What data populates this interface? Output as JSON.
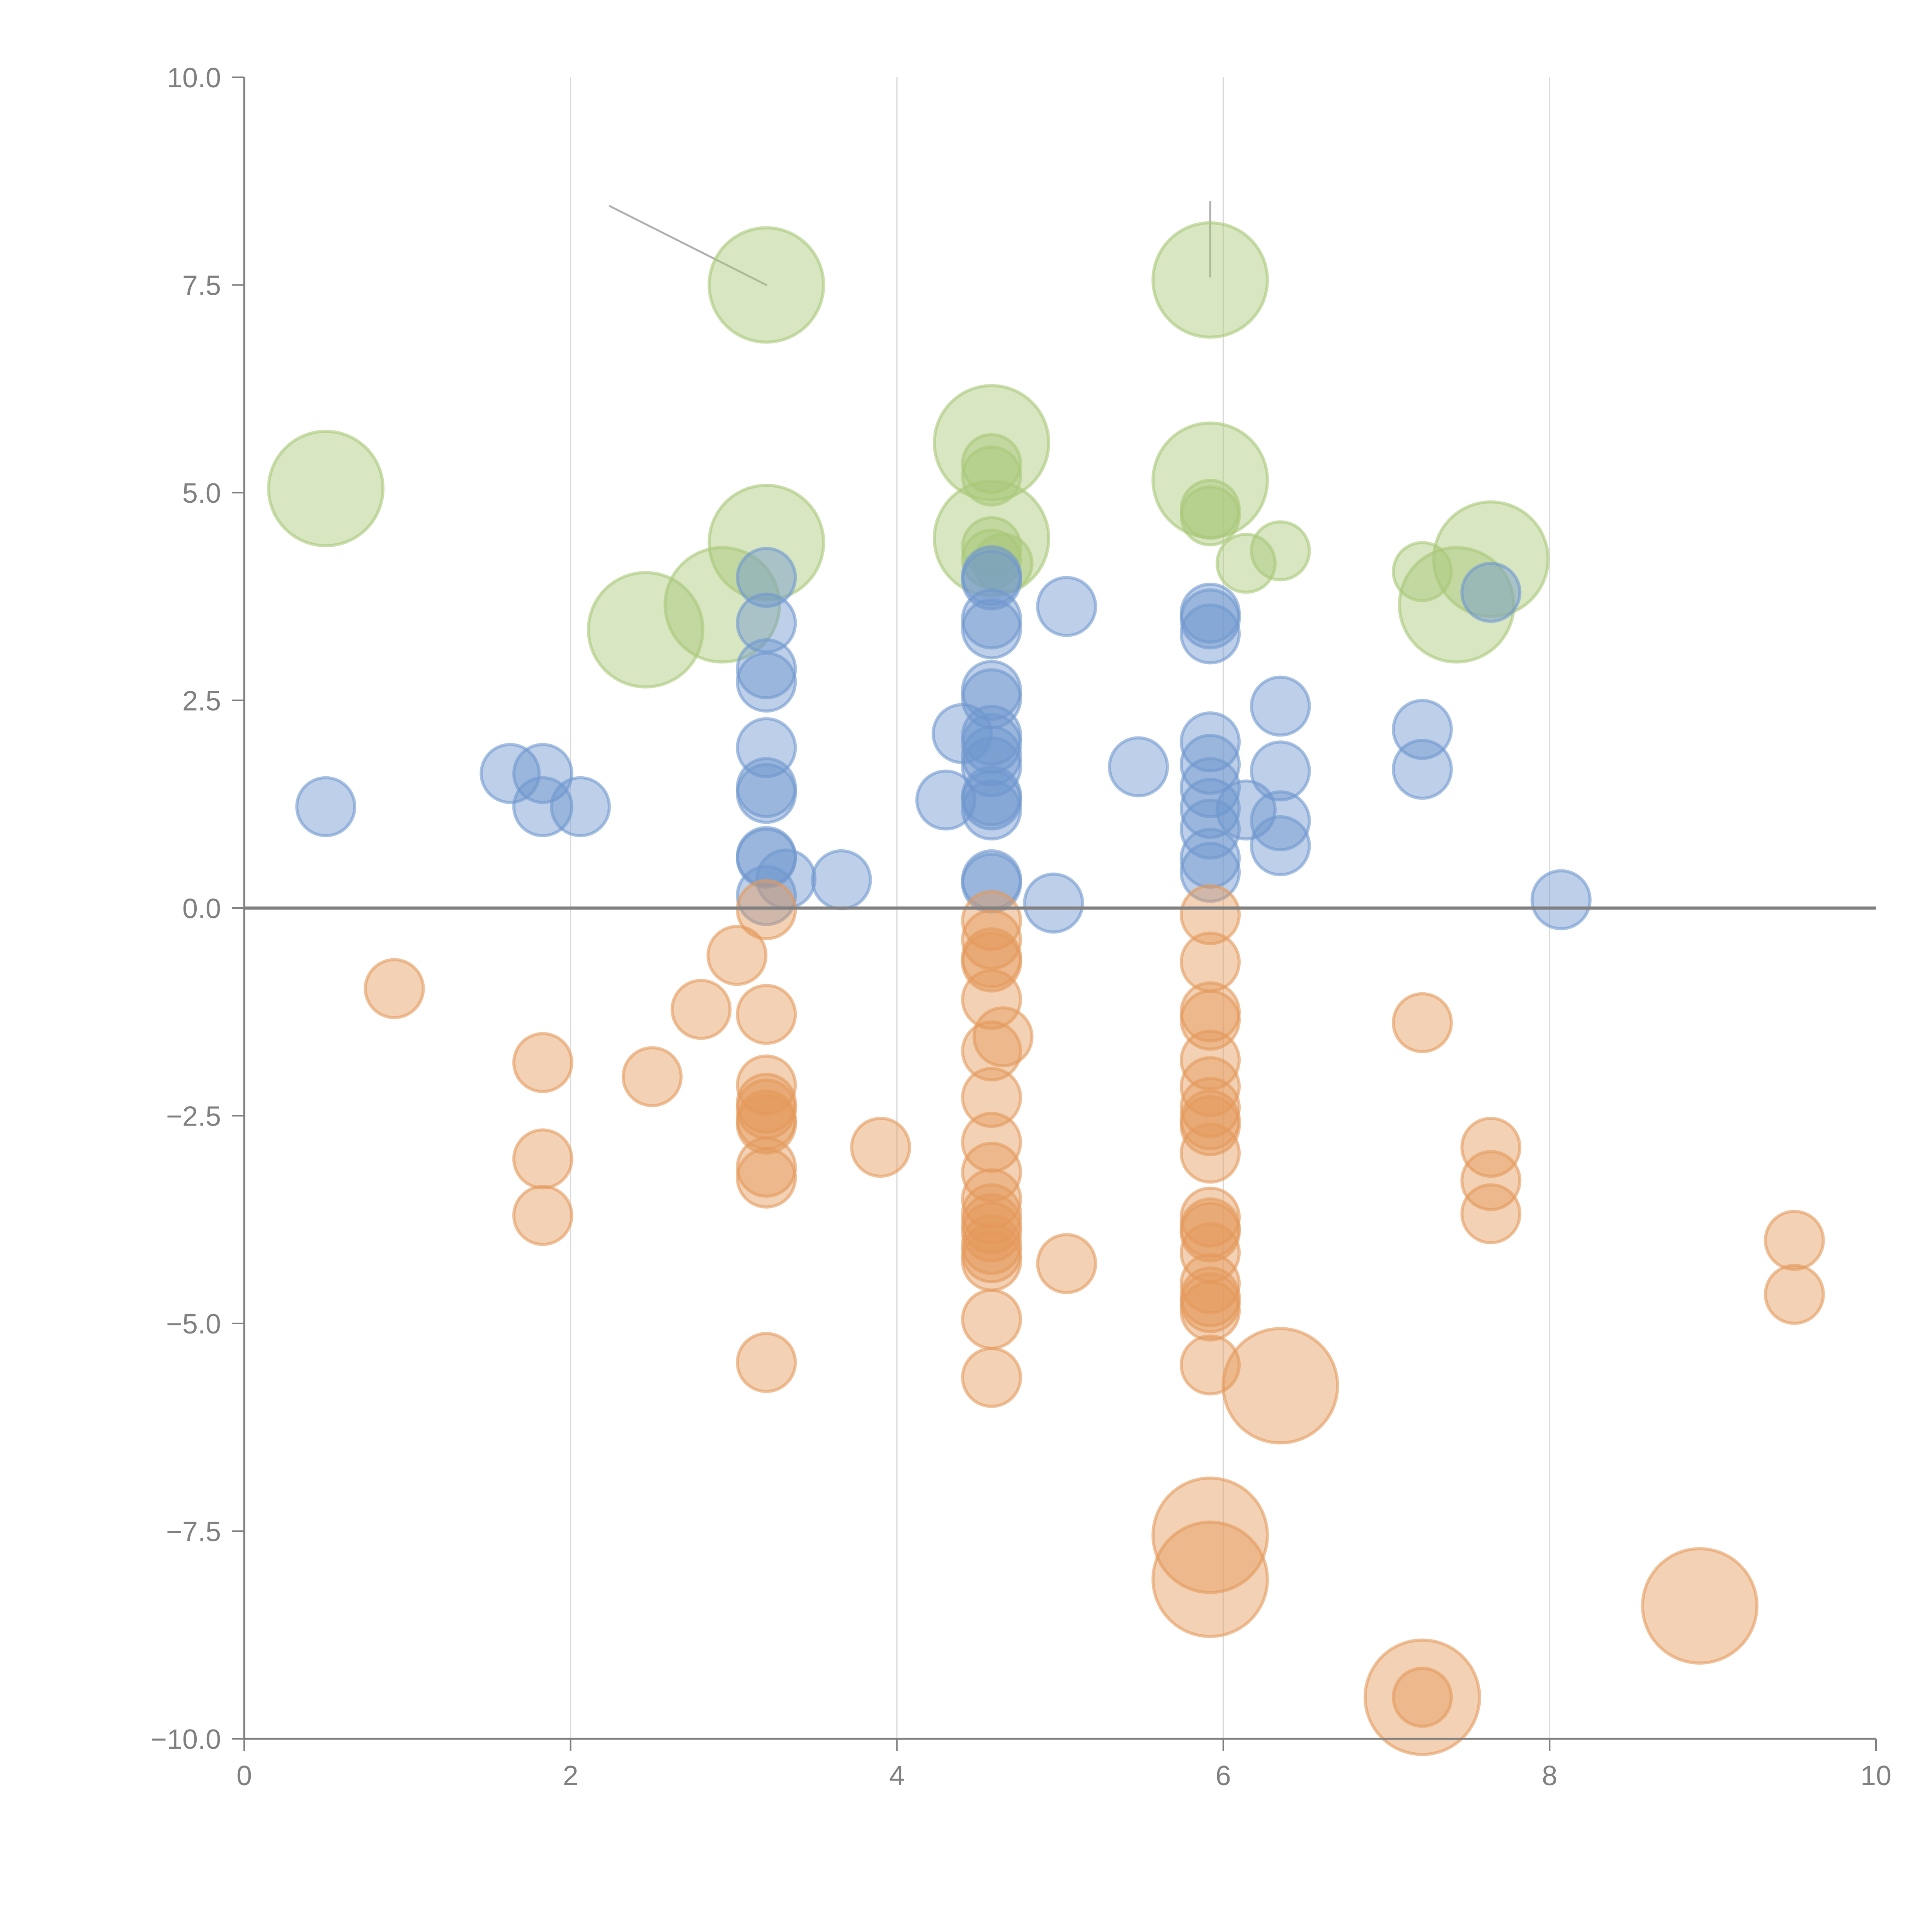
{
  "chart_data": {
    "type": "scatter",
    "title": "",
    "xlabel": "",
    "ylabel": "",
    "xlim": [
      0,
      10
    ],
    "ylim": [
      -10,
      10
    ],
    "grid": "vertical",
    "x_ticks": [
      "0",
      "2",
      "4",
      "6",
      "8",
      "10"
    ],
    "x_tick_values": [
      0,
      2,
      4,
      6,
      8,
      10
    ],
    "y_ticks": [
      "10.0",
      "7.5",
      "5.0",
      "2.5",
      "0.0",
      "−2.5",
      "−5.0",
      "−7.5",
      "−10.0"
    ],
    "y_tick_values": [
      10,
      7.5,
      5,
      2.5,
      0,
      -2.5,
      -5,
      -7.5,
      -10
    ],
    "zero_line": 0,
    "colors": {
      "blue": "#6f97cf",
      "orange": "#e49a5c",
      "green": "#a8c878",
      "axis": "#808080",
      "grid": "#d9d9d9",
      "leader": "#b0b0b0"
    },
    "series": [
      {
        "name": "green",
        "color": "#a8c878",
        "points": [
          [
            3.2,
            7.5,
            3
          ],
          [
            5.92,
            7.56,
            3
          ],
          [
            0.5,
            5.05,
            3
          ],
          [
            4.58,
            5.6,
            3
          ],
          [
            4.58,
            5.35,
            1
          ],
          [
            4.58,
            5.2,
            1
          ],
          [
            5.92,
            5.15,
            3
          ],
          [
            5.92,
            4.8,
            1
          ],
          [
            5.92,
            4.72,
            1
          ],
          [
            3.2,
            4.4,
            3
          ],
          [
            4.58,
            4.45,
            3
          ],
          [
            4.58,
            4.35,
            1
          ],
          [
            4.58,
            4.2,
            1
          ],
          [
            4.65,
            4.15,
            1
          ],
          [
            6.14,
            4.15,
            1
          ],
          [
            6.35,
            4.3,
            1
          ],
          [
            7.22,
            4.05,
            1
          ],
          [
            7.64,
            4.2,
            3
          ],
          [
            7.43,
            3.65,
            3
          ],
          [
            2.93,
            3.65,
            3
          ],
          [
            2.46,
            3.35,
            3
          ]
        ]
      },
      {
        "name": "blue",
        "color": "#6f97cf",
        "points": [
          [
            0.5,
            1.22,
            1
          ],
          [
            1.63,
            1.62,
            1
          ],
          [
            1.83,
            1.62,
            1
          ],
          [
            1.83,
            1.22,
            1
          ],
          [
            2.06,
            1.22,
            1
          ],
          [
            3.2,
            3.98,
            1
          ],
          [
            3.2,
            3.43,
            1
          ],
          [
            3.2,
            2.88,
            1
          ],
          [
            3.2,
            2.72,
            1
          ],
          [
            3.2,
            1.93,
            1
          ],
          [
            3.2,
            1.45,
            1
          ],
          [
            3.2,
            1.38,
            1
          ],
          [
            3.2,
            0.62,
            1
          ],
          [
            3.2,
            0.6,
            1
          ],
          [
            3.2,
            0.15,
            1
          ],
          [
            3.32,
            0.35,
            1
          ],
          [
            3.66,
            0.34,
            1
          ],
          [
            4.3,
            1.3,
            1
          ],
          [
            4.4,
            2.1,
            1
          ],
          [
            4.58,
            4.0,
            1
          ],
          [
            4.58,
            3.95,
            1
          ],
          [
            4.58,
            3.48,
            1
          ],
          [
            4.58,
            3.36,
            1
          ],
          [
            4.58,
            2.62,
            1
          ],
          [
            4.58,
            2.52,
            1
          ],
          [
            4.58,
            2.08,
            1
          ],
          [
            4.58,
            1.98,
            1
          ],
          [
            4.58,
            1.83,
            1
          ],
          [
            4.58,
            1.7,
            1
          ],
          [
            4.58,
            1.35,
            1
          ],
          [
            4.58,
            1.3,
            1
          ],
          [
            4.58,
            1.18,
            1
          ],
          [
            4.58,
            0.34,
            1
          ],
          [
            4.58,
            0.3,
            1
          ],
          [
            4.96,
            0.06,
            1
          ],
          [
            5.04,
            3.63,
            1
          ],
          [
            5.48,
            1.7,
            1
          ],
          [
            5.92,
            3.55,
            1
          ],
          [
            5.92,
            3.48,
            1
          ],
          [
            5.92,
            3.3,
            1
          ],
          [
            5.92,
            2.0,
            1
          ],
          [
            5.92,
            1.73,
            1
          ],
          [
            5.92,
            1.45,
            1
          ],
          [
            5.92,
            1.2,
            1
          ],
          [
            5.92,
            0.95,
            1
          ],
          [
            5.92,
            0.6,
            1
          ],
          [
            5.92,
            0.43,
            1
          ],
          [
            6.14,
            1.18,
            1
          ],
          [
            6.35,
            2.43,
            1
          ],
          [
            6.35,
            1.65,
            1
          ],
          [
            6.35,
            1.05,
            1
          ],
          [
            6.35,
            0.75,
            1
          ],
          [
            7.22,
            2.15,
            1
          ],
          [
            7.22,
            1.67,
            1
          ],
          [
            7.64,
            3.8,
            1
          ],
          [
            8.07,
            0.1,
            1
          ]
        ]
      },
      {
        "name": "orange",
        "color": "#e49a5c",
        "points": [
          [
            0.92,
            -0.97,
            1
          ],
          [
            1.83,
            -1.86,
            1
          ],
          [
            1.83,
            -3.02,
            1
          ],
          [
            1.83,
            -3.7,
            1
          ],
          [
            2.5,
            -2.03,
            1
          ],
          [
            2.8,
            -1.22,
            1
          ],
          [
            3.02,
            -0.57,
            1
          ],
          [
            3.2,
            -0.02,
            1
          ],
          [
            3.2,
            -1.28,
            1
          ],
          [
            3.2,
            -2.13,
            1
          ],
          [
            3.2,
            -2.35,
            1
          ],
          [
            3.2,
            -2.42,
            1
          ],
          [
            3.2,
            -2.55,
            1
          ],
          [
            3.2,
            -2.6,
            1
          ],
          [
            3.2,
            -3.12,
            1
          ],
          [
            3.2,
            -3.25,
            1
          ],
          [
            3.2,
            -5.47,
            1
          ],
          [
            3.9,
            -2.88,
            1
          ],
          [
            4.58,
            -0.15,
            1
          ],
          [
            4.58,
            -0.38,
            1
          ],
          [
            4.58,
            -0.6,
            1
          ],
          [
            4.58,
            -0.65,
            1
          ],
          [
            4.58,
            -1.1,
            1
          ],
          [
            4.65,
            -1.55,
            1
          ],
          [
            4.58,
            -1.72,
            1
          ],
          [
            4.58,
            -2.28,
            1
          ],
          [
            4.58,
            -2.82,
            1
          ],
          [
            4.58,
            -3.18,
            1
          ],
          [
            4.58,
            -3.5,
            1
          ],
          [
            4.58,
            -3.68,
            1
          ],
          [
            4.58,
            -3.8,
            1
          ],
          [
            4.58,
            -3.9,
            1
          ],
          [
            4.58,
            -4.05,
            1
          ],
          [
            4.58,
            -4.15,
            1
          ],
          [
            4.58,
            -4.25,
            1
          ],
          [
            4.58,
            -4.95,
            1
          ],
          [
            4.58,
            -5.65,
            1
          ],
          [
            5.04,
            -4.28,
            1
          ],
          [
            5.92,
            -0.08,
            1
          ],
          [
            5.92,
            -0.65,
            1
          ],
          [
            5.92,
            -1.25,
            1
          ],
          [
            5.92,
            -1.35,
            1
          ],
          [
            5.92,
            -1.83,
            1
          ],
          [
            5.92,
            -2.15,
            1
          ],
          [
            5.92,
            -2.4,
            1
          ],
          [
            5.92,
            -2.55,
            1
          ],
          [
            5.92,
            -2.62,
            1
          ],
          [
            5.92,
            -2.95,
            1
          ],
          [
            5.92,
            -3.72,
            1
          ],
          [
            5.92,
            -3.85,
            1
          ],
          [
            5.92,
            -3.9,
            1
          ],
          [
            5.92,
            -4.15,
            1
          ],
          [
            5.92,
            -4.52,
            1
          ],
          [
            5.92,
            -4.68,
            1
          ],
          [
            5.92,
            -4.75,
            1
          ],
          [
            5.92,
            -4.85,
            1
          ],
          [
            5.92,
            -5.5,
            1
          ],
          [
            6.35,
            -5.75,
            3
          ],
          [
            5.92,
            -7.55,
            3
          ],
          [
            5.92,
            -8.08,
            3
          ],
          [
            7.22,
            -1.38,
            1
          ],
          [
            7.64,
            -2.88,
            1
          ],
          [
            7.64,
            -3.28,
            1
          ],
          [
            7.64,
            -3.68,
            1
          ],
          [
            7.22,
            -9.5,
            3
          ],
          [
            7.22,
            -9.5,
            1
          ],
          [
            8.92,
            -8.4,
            3
          ],
          [
            9.5,
            -4.0,
            1
          ],
          [
            9.5,
            -4.65,
            1
          ]
        ]
      }
    ],
    "size_scale_note_units": "third value = relative bubble size (1 small, 3 large)"
  }
}
